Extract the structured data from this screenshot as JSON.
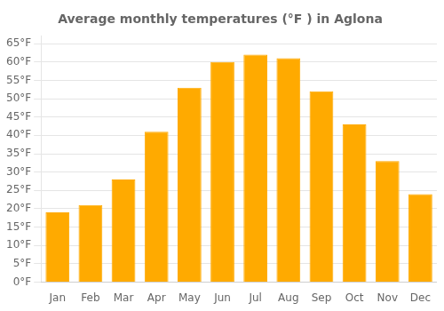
{
  "chart_data": {
    "type": "bar",
    "title": "Average monthly temperatures (°F ) in Aglona",
    "categories": [
      "Jan",
      "Feb",
      "Mar",
      "Apr",
      "May",
      "Jun",
      "Jul",
      "Aug",
      "Sep",
      "Oct",
      "Nov",
      "Dec"
    ],
    "values": [
      19,
      21,
      28,
      41,
      53,
      60,
      62,
      61,
      52,
      43,
      33,
      24
    ],
    "color": "#FFAA00",
    "ylim": [
      0,
      67
    ],
    "yticks": [
      {
        "value": 0,
        "label": "0°F"
      },
      {
        "value": 5,
        "label": "5°F"
      },
      {
        "value": 10,
        "label": "10°F"
      },
      {
        "value": 15,
        "label": "15°F"
      },
      {
        "value": 20,
        "label": "20°F"
      },
      {
        "value": 25,
        "label": "25°F"
      },
      {
        "value": 30,
        "label": "30°F"
      },
      {
        "value": 35,
        "label": "35°F"
      },
      {
        "value": 40,
        "label": "40°F"
      },
      {
        "value": 45,
        "label": "45°F"
      },
      {
        "value": 50,
        "label": "50°F"
      },
      {
        "value": 55,
        "label": "55°F"
      },
      {
        "value": 60,
        "label": "60°F"
      },
      {
        "value": 65,
        "label": "65°F"
      }
    ],
    "grid": true
  }
}
